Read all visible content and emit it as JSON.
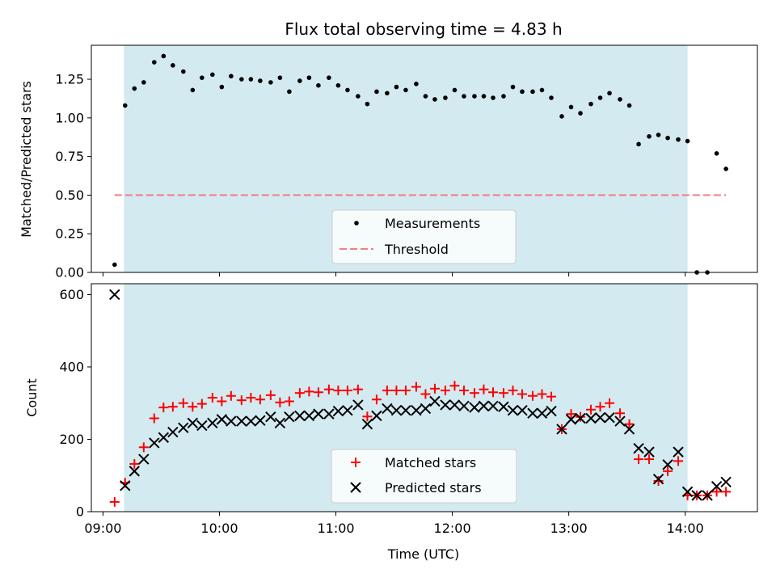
{
  "chart_data": {
    "title": "Flux total observing time = 4.83 h",
    "xlabel": "Time (UTC)",
    "x_ticks": [
      9,
      10,
      11,
      12,
      13,
      14
    ],
    "x_tick_labels": [
      "09:00",
      "10:00",
      "11:00",
      "12:00",
      "13:00",
      "14:00"
    ],
    "xlim": [
      8.9,
      14.62
    ],
    "shaded_interval": {
      "start": 9.18,
      "end": 14.02,
      "color": "#d3eaf0"
    },
    "panels": [
      {
        "type": "scatter",
        "ylabel": "Matched/Predicted stars",
        "ylim": [
          0,
          1.47
        ],
        "y_ticks": [
          0.0,
          0.25,
          0.5,
          0.75,
          1.0,
          1.25
        ],
        "y_tick_labels": [
          "0.00",
          "0.25",
          "0.50",
          "0.75",
          "1.00",
          "1.25"
        ],
        "legend_position": "lower-center",
        "threshold": {
          "name": "Threshold",
          "value": 0.5,
          "x_range": [
            9.1,
            14.35
          ],
          "color": "#f08080"
        },
        "series": [
          {
            "name": "Measurements",
            "marker": "dot",
            "color": "#000000",
            "x": [
              9.1,
              9.19,
              9.27,
              9.35,
              9.44,
              9.52,
              9.6,
              9.69,
              9.77,
              9.85,
              9.94,
              10.02,
              10.1,
              10.19,
              10.27,
              10.35,
              10.44,
              10.52,
              10.6,
              10.69,
              10.77,
              10.85,
              10.94,
              11.02,
              11.1,
              11.19,
              11.27,
              11.35,
              11.44,
              11.52,
              11.6,
              11.69,
              11.77,
              11.85,
              11.94,
              12.02,
              12.1,
              12.19,
              12.27,
              12.35,
              12.44,
              12.52,
              12.6,
              12.69,
              12.77,
              12.85,
              12.94,
              13.02,
              13.1,
              13.19,
              13.27,
              13.35,
              13.44,
              13.52,
              13.6,
              13.69,
              13.77,
              13.85,
              13.94,
              14.02,
              14.1,
              14.19,
              14.27,
              14.35
            ],
            "y": [
              0.05,
              1.08,
              1.19,
              1.23,
              1.36,
              1.4,
              1.34,
              1.3,
              1.18,
              1.26,
              1.28,
              1.2,
              1.27,
              1.25,
              1.25,
              1.24,
              1.23,
              1.26,
              1.17,
              1.24,
              1.26,
              1.21,
              1.26,
              1.21,
              1.18,
              1.14,
              1.09,
              1.17,
              1.16,
              1.2,
              1.18,
              1.22,
              1.14,
              1.12,
              1.13,
              1.18,
              1.14,
              1.14,
              1.14,
              1.13,
              1.14,
              1.2,
              1.17,
              1.17,
              1.18,
              1.13,
              1.01,
              1.07,
              1.03,
              1.09,
              1.13,
              1.16,
              1.12,
              1.08,
              0.83,
              0.88,
              0.89,
              0.87,
              0.86,
              0.85,
              0.0,
              0.0,
              0.77,
              0.67
            ]
          }
        ]
      },
      {
        "type": "scatter",
        "ylabel": "Count",
        "ylim": [
          0,
          630
        ],
        "y_ticks": [
          0,
          200,
          400,
          600
        ],
        "y_tick_labels": [
          "0",
          "200",
          "400",
          "600"
        ],
        "legend_position": "lower-center",
        "series": [
          {
            "name": "Matched stars",
            "marker": "plus",
            "color": "#ff0000",
            "x": [
              9.1,
              9.19,
              9.27,
              9.35,
              9.44,
              9.52,
              9.6,
              9.69,
              9.77,
              9.85,
              9.94,
              10.02,
              10.1,
              10.19,
              10.27,
              10.35,
              10.44,
              10.52,
              10.6,
              10.69,
              10.77,
              10.85,
              10.94,
              11.02,
              11.1,
              11.19,
              11.27,
              11.35,
              11.44,
              11.52,
              11.6,
              11.69,
              11.77,
              11.85,
              11.94,
              12.02,
              12.1,
              12.19,
              12.27,
              12.35,
              12.44,
              12.52,
              12.6,
              12.69,
              12.77,
              12.85,
              12.94,
              13.02,
              13.1,
              13.19,
              13.27,
              13.35,
              13.44,
              13.52,
              13.6,
              13.69,
              13.77,
              13.85,
              13.94,
              14.02,
              14.1,
              14.19,
              14.27,
              14.35
            ],
            "y": [
              27,
              80,
              132,
              178,
              258,
              288,
              290,
              300,
              290,
              298,
              315,
              305,
              320,
              308,
              315,
              310,
              322,
              302,
              305,
              328,
              332,
              330,
              338,
              335,
              335,
              338,
              263,
              310,
              335,
              335,
              335,
              345,
              325,
              340,
              335,
              348,
              335,
              328,
              338,
              330,
              328,
              335,
              325,
              320,
              325,
              318,
              228,
              270,
              262,
              282,
              290,
              300,
              272,
              242,
              145,
              145,
              85,
              112,
              140,
              45,
              45,
              45,
              55,
              55
            ]
          },
          {
            "name": "Predicted stars",
            "marker": "x",
            "color": "#000000",
            "x": [
              9.1,
              9.19,
              9.27,
              9.35,
              9.44,
              9.52,
              9.6,
              9.69,
              9.77,
              9.85,
              9.94,
              10.02,
              10.1,
              10.19,
              10.27,
              10.35,
              10.44,
              10.52,
              10.6,
              10.69,
              10.77,
              10.85,
              10.94,
              11.02,
              11.1,
              11.19,
              11.27,
              11.35,
              11.44,
              11.52,
              11.6,
              11.69,
              11.77,
              11.85,
              11.94,
              12.02,
              12.1,
              12.19,
              12.27,
              12.35,
              12.44,
              12.52,
              12.6,
              12.69,
              12.77,
              12.85,
              12.94,
              13.02,
              13.1,
              13.19,
              13.27,
              13.35,
              13.44,
              13.52,
              13.6,
              13.69,
              13.77,
              13.85,
              13.94,
              14.02,
              14.1,
              14.19,
              14.27,
              14.35
            ],
            "y": [
              600,
              72,
              112,
              145,
              190,
              205,
              220,
              232,
              245,
              238,
              245,
              255,
              250,
              250,
              250,
              252,
              262,
              245,
              262,
              265,
              265,
              270,
              270,
              278,
              280,
              295,
              242,
              265,
              285,
              280,
              280,
              280,
              285,
              305,
              295,
              295,
              292,
              288,
              292,
              292,
              290,
              280,
              280,
              272,
              272,
              278,
              228,
              255,
              258,
              258,
              260,
              260,
              250,
              228,
              175,
              165,
              90,
              130,
              165,
              55,
              45,
              45,
              70,
              82
            ]
          }
        ]
      }
    ]
  }
}
